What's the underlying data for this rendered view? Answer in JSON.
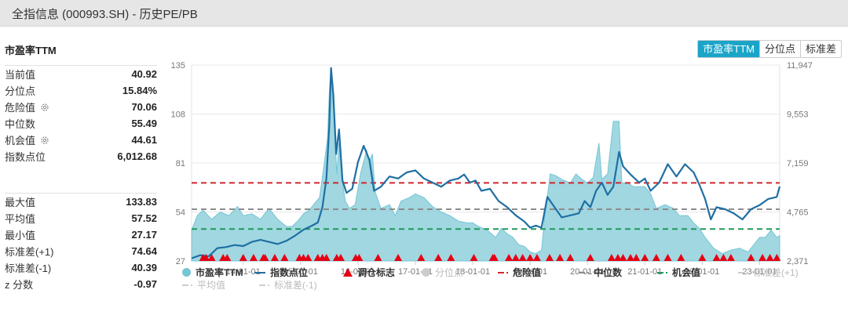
{
  "header": {
    "title": "全指信息 (000993.SH) - 历史PE/PB"
  },
  "metric": {
    "title": "市盈率TTM"
  },
  "stats_primary": [
    {
      "label": "当前值",
      "value": "40.92",
      "gear": false
    },
    {
      "label": "分位点",
      "value": "15.84%",
      "gear": false
    },
    {
      "label": "危险值",
      "value": "70.06",
      "gear": true
    },
    {
      "label": "中位数",
      "value": "55.49",
      "gear": false
    },
    {
      "label": "机会值",
      "value": "44.61",
      "gear": true
    },
    {
      "label": "指数点位",
      "value": "6,012.68",
      "gear": false
    }
  ],
  "stats_secondary": [
    {
      "label": "最大值",
      "value": "133.83"
    },
    {
      "label": "平均值",
      "value": "57.52"
    },
    {
      "label": "最小值",
      "value": "27.17"
    },
    {
      "label": "标准差(+1)",
      "value": "74.64"
    },
    {
      "label": "标准差(-1)",
      "value": "40.39"
    },
    {
      "label": "z 分数",
      "value": "-0.97"
    }
  ],
  "toggle": {
    "options": [
      "市盈率TTM",
      "分位点",
      "标准差"
    ],
    "active": 0
  },
  "colors": {
    "accent": "#1aa5c8",
    "pe_fill": "#8fd0dc",
    "pe_line": "#76c6d6",
    "index_line": "#1f6fa3",
    "danger": "#d0262f",
    "median": "#8c8c8c",
    "opportunity": "#1f9a5a",
    "rebalance": "#e60012",
    "grid": "#e8e8e8"
  },
  "legend": [
    {
      "label": "市盈率TTM",
      "type": "dot",
      "color": "#76c6d6",
      "dim": false
    },
    {
      "label": "指数点位",
      "type": "line",
      "color": "#1f6fa3",
      "dim": false
    },
    {
      "label": "调仓标志",
      "type": "triangle",
      "color": "#e60012",
      "dim": false
    },
    {
      "label": "分位点",
      "type": "dot",
      "color": "#cccccc",
      "dim": true
    },
    {
      "label": "危险值",
      "type": "dash",
      "color": "#d0262f",
      "dim": false
    },
    {
      "label": "中位数",
      "type": "dash",
      "color": "#8c8c8c",
      "dim": false
    },
    {
      "label": "机会值",
      "type": "dash",
      "color": "#1f9a5a",
      "dim": false
    },
    {
      "label": "标准差(+1)",
      "type": "dash",
      "color": "#cccccc",
      "dim": true
    },
    {
      "label": "平均值",
      "type": "dash",
      "color": "#cccccc",
      "dim": true
    },
    {
      "label": "标准差(-1)",
      "type": "dash",
      "color": "#cccccc",
      "dim": true
    }
  ],
  "chart_data": {
    "type": "line",
    "title": "市盈率TTM",
    "xlabel": "",
    "ylabel_left": "市盈率TTM",
    "ylabel_right": "指数点位",
    "x_ticks": [
      "14-01-01",
      "15-01-01",
      "16-01-01",
      "17-01-01",
      "18-01-01",
      "19-01-01",
      "20-01-01",
      "21-01-01",
      "22-01-01",
      "23-01-01"
    ],
    "y_left_ticks": [
      135,
      108,
      81,
      54,
      27
    ],
    "y_right_ticks": [
      "11,947",
      "9,553",
      "7,159",
      "4,765",
      "2,371"
    ],
    "ylim_left": [
      27,
      135
    ],
    "ylim_right": [
      2371,
      11947
    ],
    "grid": true,
    "legend_position": "bottom",
    "reference_lines": {
      "danger": 70.06,
      "median": 55.49,
      "opportunity": 44.61
    },
    "x_range": [
      2013.1,
      2023.35
    ],
    "series": [
      {
        "name": "市盈率TTM",
        "axis": "left",
        "style": "area",
        "points": [
          [
            2013.1,
            44
          ],
          [
            2013.2,
            52
          ],
          [
            2013.3,
            55
          ],
          [
            2013.45,
            50
          ],
          [
            2013.6,
            54
          ],
          [
            2013.75,
            52
          ],
          [
            2013.9,
            57
          ],
          [
            2014.0,
            52
          ],
          [
            2014.15,
            53
          ],
          [
            2014.3,
            50
          ],
          [
            2014.45,
            56
          ],
          [
            2014.6,
            50
          ],
          [
            2014.75,
            46
          ],
          [
            2014.85,
            46
          ],
          [
            2014.95,
            49
          ],
          [
            2015.05,
            53
          ],
          [
            2015.15,
            55
          ],
          [
            2015.25,
            59
          ],
          [
            2015.33,
            62
          ],
          [
            2015.4,
            78
          ],
          [
            2015.47,
            95
          ],
          [
            2015.5,
            120
          ],
          [
            2015.53,
            134
          ],
          [
            2015.56,
            118
          ],
          [
            2015.6,
            95
          ],
          [
            2015.63,
            75
          ],
          [
            2015.67,
            92
          ],
          [
            2015.72,
            72
          ],
          [
            2015.78,
            60
          ],
          [
            2015.85,
            56
          ],
          [
            2015.95,
            58
          ],
          [
            2016.05,
            76
          ],
          [
            2016.15,
            88
          ],
          [
            2016.2,
            82
          ],
          [
            2016.25,
            86
          ],
          [
            2016.3,
            65
          ],
          [
            2016.4,
            56
          ],
          [
            2016.55,
            58
          ],
          [
            2016.65,
            52
          ],
          [
            2016.75,
            60
          ],
          [
            2016.9,
            62
          ],
          [
            2017.0,
            64
          ],
          [
            2017.15,
            62
          ],
          [
            2017.3,
            57
          ],
          [
            2017.45,
            54
          ],
          [
            2017.6,
            52
          ],
          [
            2017.75,
            49
          ],
          [
            2017.9,
            48
          ],
          [
            2018.0,
            48
          ],
          [
            2018.1,
            46
          ],
          [
            2018.25,
            44
          ],
          [
            2018.4,
            40
          ],
          [
            2018.5,
            45
          ],
          [
            2018.6,
            42
          ],
          [
            2018.7,
            40
          ],
          [
            2018.8,
            36
          ],
          [
            2018.9,
            35
          ],
          [
            2019.0,
            32
          ],
          [
            2019.1,
            31
          ],
          [
            2019.2,
            33
          ],
          [
            2019.25,
            50
          ],
          [
            2019.35,
            75
          ],
          [
            2019.45,
            74
          ],
          [
            2019.55,
            72
          ],
          [
            2019.7,
            70
          ],
          [
            2019.8,
            75
          ],
          [
            2019.9,
            72
          ],
          [
            2020.0,
            70
          ],
          [
            2020.1,
            73
          ],
          [
            2020.2,
            92
          ],
          [
            2020.25,
            72
          ],
          [
            2020.35,
            75
          ],
          [
            2020.45,
            104
          ],
          [
            2020.55,
            104
          ],
          [
            2020.6,
            70
          ],
          [
            2020.7,
            70
          ],
          [
            2020.8,
            68
          ],
          [
            2020.9,
            68
          ],
          [
            2021.0,
            68
          ],
          [
            2021.1,
            64
          ],
          [
            2021.2,
            56
          ],
          [
            2021.35,
            58
          ],
          [
            2021.5,
            56
          ],
          [
            2021.6,
            52
          ],
          [
            2021.75,
            52
          ],
          [
            2021.85,
            48
          ],
          [
            2021.95,
            45
          ],
          [
            2022.05,
            40
          ],
          [
            2022.2,
            34
          ],
          [
            2022.35,
            31
          ],
          [
            2022.5,
            33
          ],
          [
            2022.65,
            34
          ],
          [
            2022.8,
            32
          ],
          [
            2022.9,
            36
          ],
          [
            2023.0,
            40
          ],
          [
            2023.1,
            40
          ],
          [
            2023.2,
            44
          ],
          [
            2023.3,
            40
          ],
          [
            2023.35,
            41
          ]
        ]
      },
      {
        "name": "指数点位",
        "axis": "right",
        "style": "line",
        "points": [
          [
            2013.1,
            2500
          ],
          [
            2013.25,
            2650
          ],
          [
            2013.4,
            2600
          ],
          [
            2013.55,
            3000
          ],
          [
            2013.7,
            3050
          ],
          [
            2013.85,
            3150
          ],
          [
            2014.0,
            3100
          ],
          [
            2014.15,
            3300
          ],
          [
            2014.3,
            3400
          ],
          [
            2014.45,
            3300
          ],
          [
            2014.6,
            3200
          ],
          [
            2014.75,
            3350
          ],
          [
            2014.9,
            3600
          ],
          [
            2015.05,
            3900
          ],
          [
            2015.2,
            4100
          ],
          [
            2015.3,
            4250
          ],
          [
            2015.38,
            5000
          ],
          [
            2015.45,
            6400
          ],
          [
            2015.5,
            9000
          ],
          [
            2015.53,
            11800
          ],
          [
            2015.57,
            10500
          ],
          [
            2015.62,
            7600
          ],
          [
            2015.67,
            8800
          ],
          [
            2015.73,
            6300
          ],
          [
            2015.8,
            5700
          ],
          [
            2015.9,
            5900
          ],
          [
            2016.0,
            7200
          ],
          [
            2016.1,
            8000
          ],
          [
            2016.2,
            7300
          ],
          [
            2016.28,
            5800
          ],
          [
            2016.4,
            6000
          ],
          [
            2016.55,
            6500
          ],
          [
            2016.7,
            6400
          ],
          [
            2016.85,
            6700
          ],
          [
            2017.0,
            6800
          ],
          [
            2017.15,
            6400
          ],
          [
            2017.3,
            6200
          ],
          [
            2017.45,
            6000
          ],
          [
            2017.6,
            6300
          ],
          [
            2017.75,
            6400
          ],
          [
            2017.85,
            6600
          ],
          [
            2017.95,
            6200
          ],
          [
            2018.05,
            6300
          ],
          [
            2018.15,
            5800
          ],
          [
            2018.3,
            5900
          ],
          [
            2018.45,
            5300
          ],
          [
            2018.6,
            5000
          ],
          [
            2018.75,
            4600
          ],
          [
            2018.9,
            4300
          ],
          [
            2019.0,
            4000
          ],
          [
            2019.1,
            4100
          ],
          [
            2019.2,
            4000
          ],
          [
            2019.3,
            5500
          ],
          [
            2019.4,
            5100
          ],
          [
            2019.55,
            4500
          ],
          [
            2019.7,
            4600
          ],
          [
            2019.85,
            4700
          ],
          [
            2019.95,
            5300
          ],
          [
            2020.05,
            5000
          ],
          [
            2020.15,
            5800
          ],
          [
            2020.25,
            6200
          ],
          [
            2020.35,
            5600
          ],
          [
            2020.45,
            6000
          ],
          [
            2020.55,
            7700
          ],
          [
            2020.62,
            7000
          ],
          [
            2020.75,
            6600
          ],
          [
            2020.9,
            6200
          ],
          [
            2021.0,
            6400
          ],
          [
            2021.1,
            5800
          ],
          [
            2021.25,
            6200
          ],
          [
            2021.4,
            7100
          ],
          [
            2021.55,
            6500
          ],
          [
            2021.7,
            7100
          ],
          [
            2021.85,
            6700
          ],
          [
            2021.95,
            6100
          ],
          [
            2022.05,
            5400
          ],
          [
            2022.15,
            4400
          ],
          [
            2022.25,
            5000
          ],
          [
            2022.4,
            4900
          ],
          [
            2022.55,
            4700
          ],
          [
            2022.7,
            4400
          ],
          [
            2022.85,
            4900
          ],
          [
            2023.0,
            5100
          ],
          [
            2023.15,
            5400
          ],
          [
            2023.3,
            5500
          ],
          [
            2023.35,
            6013
          ]
        ]
      }
    ],
    "rebalance_markers": [
      2013.3,
      2013.35,
      2013.45,
      2013.65,
      2013.72,
      2014.0,
      2014.18,
      2014.35,
      2014.38,
      2014.55,
      2014.72,
      2014.98,
      2015.05,
      2015.13,
      2015.3,
      2015.38,
      2015.45,
      2015.63,
      2015.7,
      2015.96,
      2016.02,
      2016.35,
      2016.7,
      2017.1,
      2017.4,
      2017.62,
      2018.02,
      2018.35,
      2018.38,
      2018.63,
      2018.75,
      2018.87,
      2019.0,
      2019.12,
      2019.34,
      2019.52,
      2019.7,
      2020.05,
      2020.42,
      2020.53,
      2020.62,
      2020.75,
      2020.85,
      2021.0,
      2021.2,
      2021.4,
      2021.63,
      2022.0,
      2022.25,
      2022.37,
      2022.5,
      2022.85,
      2023.05,
      2023.18,
      2023.3
    ]
  }
}
